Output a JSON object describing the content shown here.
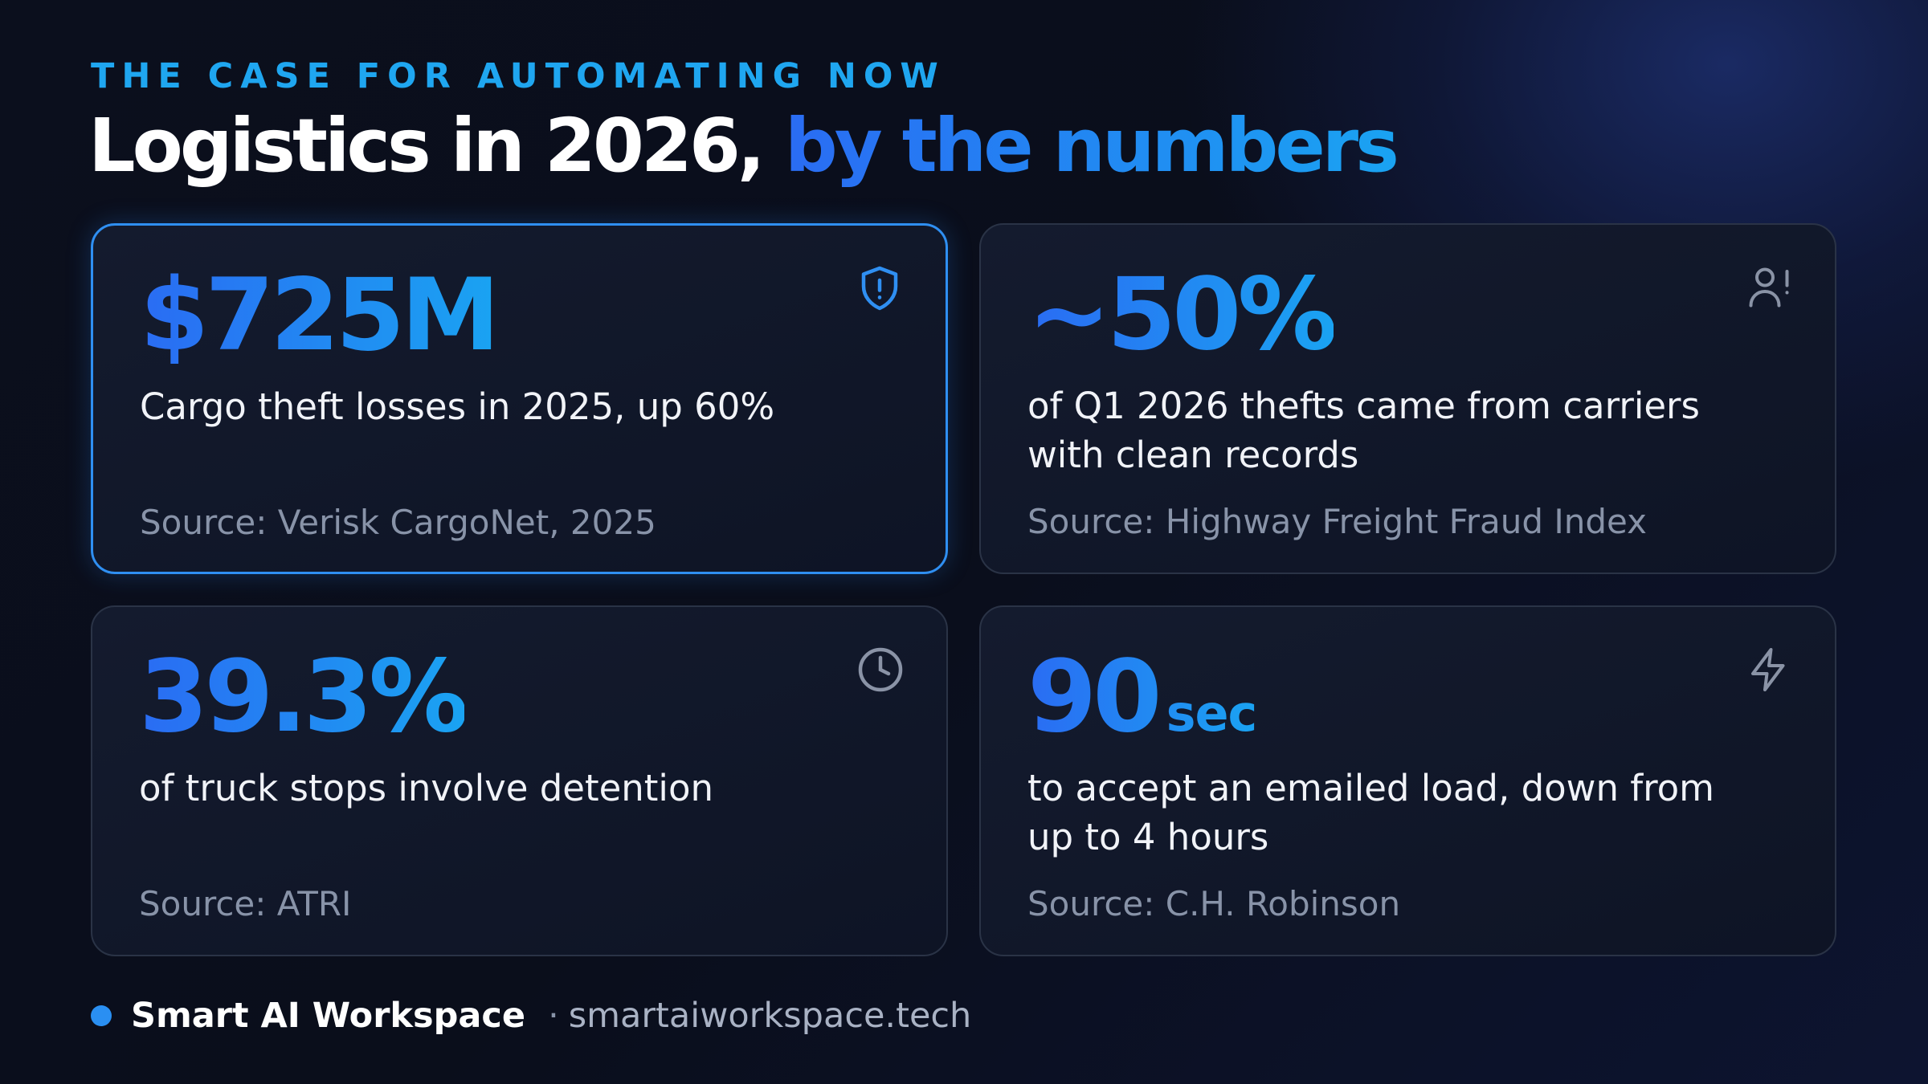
{
  "header": {
    "kicker": "THE CASE FOR AUTOMATING NOW",
    "title_main": "Logistics in 2026,",
    "title_accent": "by the numbers"
  },
  "cards": [
    {
      "stat": "$725M",
      "description": "Cargo theft losses in 2025, up 60%",
      "source": "Source: Verisk CargoNet, 2025"
    },
    {
      "stat": "~50%",
      "description": "of Q1 2026 thefts came from carriers with clean records",
      "source": "Source: Highway Freight Fraud Index"
    },
    {
      "stat": "39.3%",
      "description": "of truck stops involve detention",
      "source": "Source: ATRI"
    },
    {
      "stat": "90",
      "unit": "sec",
      "description": "to accept an emailed load, down from up to 4 hours",
      "source": "Source: C.H. Robinson"
    }
  ],
  "footer": {
    "brand": "Smart AI Workspace",
    "separator": "·",
    "url": "smartaiworkspace.tech"
  }
}
